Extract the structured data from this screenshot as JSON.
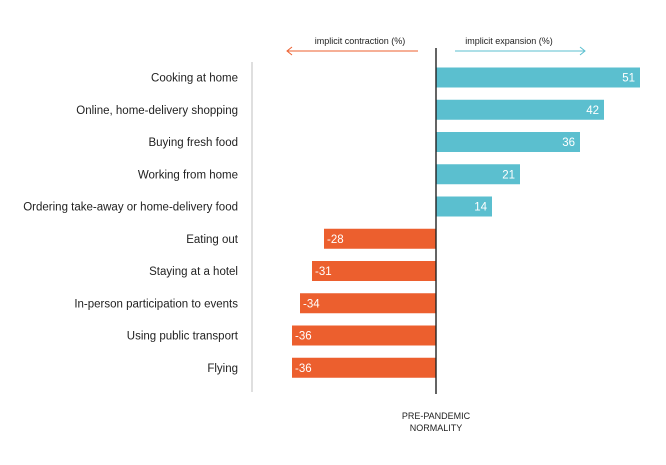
{
  "chart_data": {
    "type": "bar",
    "orientation": "horizontal",
    "categories": [
      "Cooking at home",
      "Online, home-delivery shopping",
      "Buying fresh food",
      "Working from home",
      "Ordering take-away or home-delivery food",
      "Eating out",
      "Staying at a hotel",
      "In-person participation to events",
      "Using public transport",
      "Flying"
    ],
    "values": [
      51,
      42,
      36,
      21,
      14,
      -28,
      -31,
      -34,
      -36,
      -36
    ],
    "value_labels": [
      "51",
      "42",
      "36",
      "21",
      "14",
      "-28",
      "-31",
      "-34",
      "-36",
      "-36"
    ],
    "colors": {
      "positive": "#5bbfcf",
      "negative": "#ec5f2e",
      "contraction_arrow": "#ec5f2e",
      "expansion_arrow": "#5bbfcf",
      "axis": "#222222",
      "guide": "#bfbfbf"
    },
    "contraction_label": "implicit contraction (%)",
    "expansion_label": "implicit expansion (%)",
    "center_label_line1": "PRE-PANDEMIC",
    "center_label_line2": "NORMALITY",
    "xlim": [
      -36,
      51
    ]
  }
}
